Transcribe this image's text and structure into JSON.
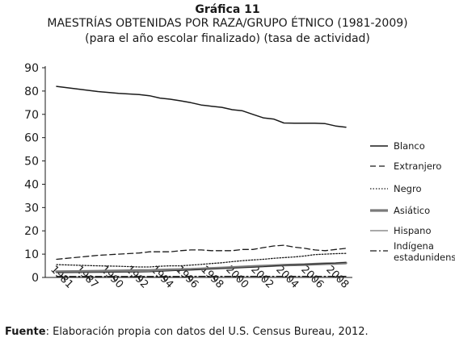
{
  "figure": {
    "label": "Gráfica 11",
    "title": "MAESTRÍAS OBTENIDAS POR RAZA/GRUPO ÉTNICO (1981-2009)",
    "subtitle": "(para el año escolar finalizado) (tasa de actividad)"
  },
  "source": {
    "prefix": "Fuente",
    "text": ": Elaboración propia con datos del U.S. Census Bureau, 2012."
  },
  "chart_data": {
    "type": "line",
    "x": [
      1981,
      1985,
      1987,
      1989,
      1990,
      1991,
      1992,
      1993,
      1994,
      1995,
      1996,
      1997,
      1998,
      1999,
      2000,
      2001,
      2002,
      2003,
      2004,
      2005,
      2006,
      2007,
      2008,
      2009
    ],
    "x_tick_labels": [
      "1981",
      "1987",
      "1990",
      "1992",
      "1994",
      "1996",
      "1998",
      "2000",
      "2002",
      "2004",
      "2006",
      "2008"
    ],
    "ylim": [
      0,
      90
    ],
    "y_ticks": [
      0,
      10,
      20,
      30,
      40,
      50,
      60,
      70,
      80,
      90
    ],
    "grid": false,
    "legend_position": "right",
    "series": [
      {
        "name": "Blanco",
        "style": "solid",
        "color": "#1a1a1a",
        "values": [
          82.0,
          79.8,
          79.0,
          78.5,
          78.0,
          77.0,
          76.5,
          75.8,
          75.0,
          74.0,
          73.5,
          73.0,
          72.0,
          71.5,
          70.0,
          68.5,
          68.0,
          66.3,
          66.2,
          66.2,
          66.2,
          66.0,
          65.0,
          64.5
        ]
      },
      {
        "name": "Extranjero",
        "style": "dashed",
        "color": "#1a1a1a",
        "values": [
          7.8,
          9.5,
          10.0,
          10.5,
          11.0,
          11.0,
          11.0,
          11.5,
          11.8,
          11.8,
          11.5,
          11.5,
          11.5,
          12.0,
          12.0,
          12.8,
          13.5,
          13.8,
          13.0,
          12.5,
          11.8,
          11.5,
          12.0,
          12.5
        ]
      },
      {
        "name": "Negro",
        "style": "dotted",
        "color": "#1a1a1a",
        "values": [
          5.5,
          5.0,
          4.8,
          4.5,
          4.5,
          4.8,
          5.0,
          5.0,
          5.3,
          5.6,
          6.0,
          6.3,
          6.8,
          7.2,
          7.5,
          7.8,
          8.2,
          8.5,
          8.8,
          9.2,
          9.8,
          10.0,
          10.2,
          10.3
        ]
      },
      {
        "name": "Asiático",
        "style": "thick-gray",
        "color": "#7a7a7a",
        "values": [
          2.5,
          2.7,
          2.8,
          3.0,
          3.0,
          3.2,
          3.3,
          3.4,
          3.5,
          3.7,
          3.9,
          4.1,
          4.3,
          4.5,
          4.7,
          4.9,
          5.1,
          5.3,
          5.4,
          5.5,
          5.7,
          5.9,
          6.0,
          6.2
        ]
      },
      {
        "name": "Hispano",
        "style": "thin",
        "color": "#1a1a1a",
        "values": [
          2.0,
          2.1,
          2.2,
          2.3,
          2.4,
          2.6,
          2.8,
          3.0,
          3.2,
          3.4,
          3.6,
          3.8,
          4.0,
          4.2,
          4.4,
          4.6,
          4.9,
          5.2,
          5.4,
          5.6,
          5.8,
          6.0,
          6.2,
          6.5
        ]
      },
      {
        "name": "Indígena estadunidense",
        "style": "dash-dot",
        "color": "#1a1a1a",
        "values": [
          0.4,
          0.4,
          0.4,
          0.4,
          0.4,
          0.4,
          0.4,
          0.4,
          0.5,
          0.5,
          0.5,
          0.5,
          0.5,
          0.5,
          0.5,
          0.5,
          0.5,
          0.5,
          0.5,
          0.5,
          0.5,
          0.5,
          0.5,
          0.5
        ]
      }
    ]
  }
}
